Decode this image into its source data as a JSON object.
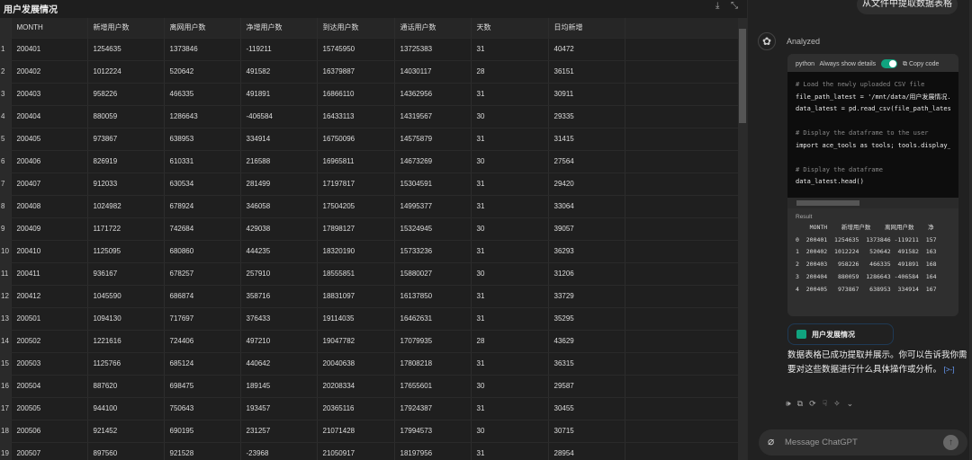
{
  "table_panel": {
    "title": "用户发展情况",
    "download_icon": "download-icon",
    "collapse_icon": "collapse-icon",
    "columns": [
      "MONTH",
      "新增用户数",
      "离网用户数",
      "净增用户数",
      "到达用户数",
      "通话用户数",
      "天数",
      "日均新增"
    ],
    "rows": [
      [
        "1",
        "200401",
        "1254635",
        "1373846",
        "-119211",
        "15745950",
        "13725383",
        "31",
        "40472"
      ],
      [
        "2",
        "200402",
        "1012224",
        "520642",
        "491582",
        "16379887",
        "14030117",
        "28",
        "36151"
      ],
      [
        "3",
        "200403",
        "958226",
        "466335",
        "491891",
        "16866110",
        "14362956",
        "31",
        "30911"
      ],
      [
        "4",
        "200404",
        "880059",
        "1286643",
        "-406584",
        "16433113",
        "14319567",
        "30",
        "29335"
      ],
      [
        "5",
        "200405",
        "973867",
        "638953",
        "334914",
        "16750096",
        "14575879",
        "31",
        "31415"
      ],
      [
        "6",
        "200406",
        "826919",
        "610331",
        "216588",
        "16965811",
        "14673269",
        "30",
        "27564"
      ],
      [
        "7",
        "200407",
        "912033",
        "630534",
        "281499",
        "17197817",
        "15304591",
        "31",
        "29420"
      ],
      [
        "8",
        "200408",
        "1024982",
        "678924",
        "346058",
        "17504205",
        "14995377",
        "31",
        "33064"
      ],
      [
        "9",
        "200409",
        "1171722",
        "742684",
        "429038",
        "17898127",
        "15324945",
        "30",
        "39057"
      ],
      [
        "10",
        "200410",
        "1125095",
        "680860",
        "444235",
        "18320190",
        "15733236",
        "31",
        "36293"
      ],
      [
        "11",
        "200411",
        "936167",
        "678257",
        "257910",
        "18555851",
        "15880027",
        "30",
        "31206"
      ],
      [
        "12",
        "200412",
        "1045590",
        "686874",
        "358716",
        "18831097",
        "16137850",
        "31",
        "33729"
      ],
      [
        "13",
        "200501",
        "1094130",
        "717697",
        "376433",
        "19114035",
        "16462631",
        "31",
        "35295"
      ],
      [
        "14",
        "200502",
        "1221616",
        "724406",
        "497210",
        "19047782",
        "17079935",
        "28",
        "43629"
      ],
      [
        "15",
        "200503",
        "1125766",
        "685124",
        "440642",
        "20040638",
        "17808218",
        "31",
        "36315"
      ],
      [
        "16",
        "200504",
        "887620",
        "698475",
        "189145",
        "20208334",
        "17655601",
        "30",
        "29587"
      ],
      [
        "17",
        "200505",
        "944100",
        "750643",
        "193457",
        "20365116",
        "17924387",
        "31",
        "30455"
      ],
      [
        "18",
        "200506",
        "921452",
        "690195",
        "231257",
        "21071428",
        "17994573",
        "30",
        "30715"
      ],
      [
        "19",
        "200507",
        "897560",
        "921528",
        "-23968",
        "21050917",
        "18197956",
        "31",
        "28954"
      ]
    ]
  },
  "chat": {
    "user_message": "从文件中提取数据表格",
    "status": "Analyzed",
    "code_block": {
      "language": "python",
      "always_show_label": "Always show details",
      "always_show_on": true,
      "copy_label": "Copy code",
      "lines": [
        "# Load the newly uploaded CSV file",
        "file_path_latest = '/mnt/data/用户发展情况.",
        "data_latest = pd.read_csv(file_path_latest",
        "",
        "# Display the dataframe to the user",
        "import ace_tools as tools; tools.display_d",
        "",
        "# Display the dataframe",
        "data_latest.head()"
      ],
      "result_label": "Result",
      "result_lines": [
        "    MONTH    新增用户数    离网用户数    净",
        "0  200401  1254635  1373846 -119211  157",
        "1  200402  1012224   520642  491582  163",
        "2  200403   958226   466335  491891  168",
        "3  200404   880059  1286643 -406584  164",
        "4  200405   973867   638953  334914  167"
      ]
    },
    "table_chip": "用户发展情况",
    "assistant_message": "数据表格已成功提取并展示。你可以告诉我你需要对这些数据进行什么具体操作或分析。",
    "cite": "[>-]",
    "input_placeholder": "Message ChatGPT"
  },
  "colors": {
    "accent": "#10a37f",
    "background": "#212121",
    "table_bg": "#1e1e1e"
  }
}
